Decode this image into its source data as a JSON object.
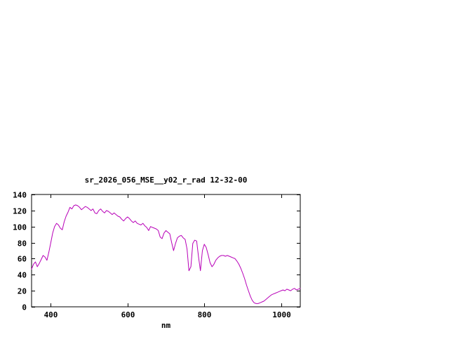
{
  "chart_data": {
    "type": "line",
    "title": "sr_2026_056_MSE__y02_r_rad 12-32-00",
    "xlabel": "nm",
    "ylabel": "",
    "xlim": [
      350,
      1050
    ],
    "ylim": [
      0,
      140
    ],
    "x_ticks": [
      400,
      600,
      800,
      1000
    ],
    "y_ticks": [
      0,
      20,
      40,
      60,
      80,
      100,
      120,
      140
    ],
    "grid": false,
    "legend_position": "none",
    "axis_color": "#000000",
    "line_color": "#b800b8",
    "series": [
      {
        "name": "sr_2026_056_MSE__y02_r_rad",
        "x": [
          350,
          355,
          360,
          365,
          370,
          375,
          380,
          385,
          390,
          395,
          400,
          405,
          410,
          415,
          420,
          425,
          430,
          435,
          440,
          445,
          450,
          455,
          460,
          465,
          470,
          475,
          480,
          485,
          490,
          495,
          500,
          505,
          510,
          515,
          520,
          525,
          530,
          535,
          540,
          545,
          550,
          555,
          560,
          565,
          570,
          575,
          580,
          585,
          590,
          595,
          600,
          605,
          610,
          615,
          620,
          625,
          630,
          635,
          640,
          645,
          650,
          655,
          660,
          665,
          670,
          675,
          680,
          685,
          690,
          695,
          700,
          705,
          710,
          715,
          720,
          725,
          730,
          735,
          740,
          745,
          750,
          755,
          760,
          765,
          770,
          775,
          780,
          785,
          790,
          795,
          800,
          805,
          810,
          815,
          820,
          825,
          830,
          835,
          840,
          845,
          850,
          855,
          860,
          865,
          870,
          875,
          880,
          885,
          890,
          895,
          900,
          905,
          910,
          915,
          920,
          925,
          930,
          935,
          940,
          945,
          950,
          955,
          960,
          965,
          970,
          975,
          980,
          985,
          990,
          995,
          1000,
          1005,
          1010,
          1015,
          1020,
          1025,
          1030,
          1035,
          1040,
          1045,
          1050
        ],
        "y": [
          47,
          53,
          56,
          50,
          54,
          59,
          64,
          62,
          58,
          68,
          80,
          92,
          100,
          104,
          102,
          98,
          96,
          106,
          113,
          118,
          124,
          122,
          126,
          127,
          126,
          124,
          121,
          123,
          125,
          124,
          122,
          120,
          122,
          117,
          116,
          120,
          122,
          119,
          117,
          120,
          119,
          117,
          115,
          117,
          115,
          113,
          112,
          109,
          107,
          110,
          112,
          110,
          107,
          105,
          107,
          104,
          103,
          102,
          104,
          101,
          99,
          95,
          100,
          99,
          98,
          97,
          95,
          87,
          85,
          92,
          95,
          93,
          91,
          80,
          70,
          79,
          86,
          88,
          89,
          86,
          84,
          72,
          45,
          50,
          79,
          83,
          82,
          62,
          45,
          70,
          78,
          74,
          65,
          55,
          50,
          53,
          58,
          61,
          63,
          64,
          64,
          63,
          64,
          63,
          62,
          61,
          60,
          57,
          53,
          48,
          42,
          35,
          27,
          20,
          13,
          8,
          5,
          4,
          4,
          5,
          6,
          7,
          9,
          11,
          13,
          15,
          16,
          17,
          18,
          19,
          20,
          21,
          20,
          22,
          21,
          20,
          22,
          23,
          21,
          22,
          23
        ]
      }
    ]
  }
}
